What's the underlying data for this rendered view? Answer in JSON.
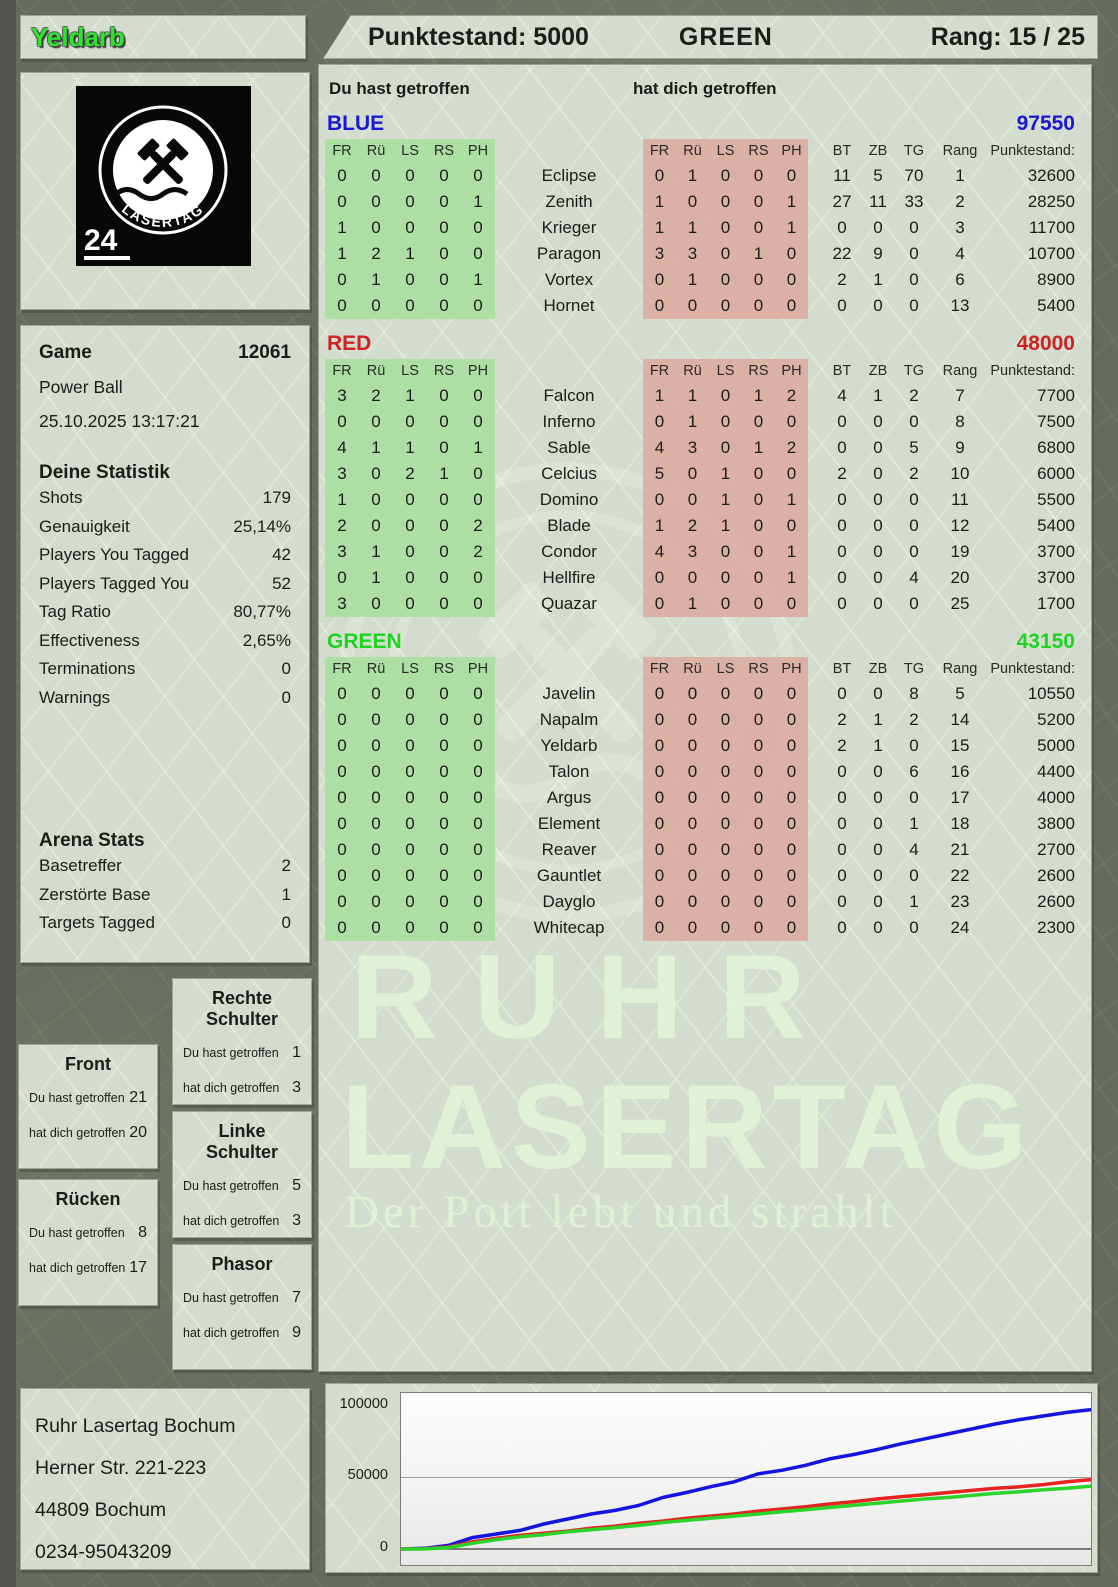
{
  "header": {
    "player": "Yeldarb",
    "player_color": "#2ce52c",
    "score_label": "Punktestand: 5000",
    "team": "GREEN",
    "rank_label": "Rang: 15 / 25"
  },
  "logo": {
    "arc_top": "RUHR",
    "arc_bottom": "LASERTAG",
    "badge": "24"
  },
  "game": {
    "label": "Game",
    "number": "12061",
    "mode": "Power Ball",
    "datetime": "25.10.2025 13:17:21"
  },
  "your_stats": {
    "title": "Deine Statistik",
    "rows": [
      [
        "Shots",
        "179"
      ],
      [
        "Genauigkeit",
        "25,14%"
      ],
      [
        "Players You Tagged",
        "42"
      ],
      [
        "Players Tagged You",
        "52"
      ],
      [
        "Tag Ratio",
        "80,77%"
      ],
      [
        "Effectiveness",
        "2,65%"
      ],
      [
        "Terminations",
        "0"
      ],
      [
        "Warnings",
        "0"
      ]
    ]
  },
  "arena_stats": {
    "title": "Arena Stats",
    "rows": [
      [
        "Basetreffer",
        "2"
      ],
      [
        "Zerstörte Base",
        "1"
      ],
      [
        "Targets Tagged",
        "0"
      ]
    ]
  },
  "scoreboard": {
    "you_hit_label": "Du hast getroffen",
    "hit_you_label": "hat dich getroffen",
    "you_band_color": "#a9dfa1",
    "them_band_color": "#dcaca1",
    "hit_cols": [
      "FR",
      "Rü",
      "LS",
      "RS",
      "PH"
    ],
    "stat_cols": [
      "BT",
      "ZB",
      "TG",
      "Rang",
      "Punktestand:"
    ],
    "teams": [
      {
        "name": "BLUE",
        "color": "#1a18d0",
        "total": "97550",
        "players": [
          {
            "name": "Eclipse",
            "you": [
              0,
              0,
              0,
              0,
              0
            ],
            "them": [
              0,
              1,
              0,
              0,
              0
            ],
            "bt": 11,
            "zb": 5,
            "tg": 70,
            "rang": 1,
            "score": "32600"
          },
          {
            "name": "Zenith",
            "you": [
              0,
              0,
              0,
              0,
              1
            ],
            "them": [
              1,
              0,
              0,
              0,
              1
            ],
            "bt": 27,
            "zb": 11,
            "tg": 33,
            "rang": 2,
            "score": "28250"
          },
          {
            "name": "Krieger",
            "you": [
              1,
              0,
              0,
              0,
              0
            ],
            "them": [
              1,
              1,
              0,
              0,
              1
            ],
            "bt": 0,
            "zb": 0,
            "tg": 0,
            "rang": 3,
            "score": "11700"
          },
          {
            "name": "Paragon",
            "you": [
              1,
              2,
              1,
              0,
              0
            ],
            "them": [
              3,
              3,
              0,
              1,
              0
            ],
            "bt": 22,
            "zb": 9,
            "tg": 0,
            "rang": 4,
            "score": "10700"
          },
          {
            "name": "Vortex",
            "you": [
              0,
              1,
              0,
              0,
              1
            ],
            "them": [
              0,
              1,
              0,
              0,
              0
            ],
            "bt": 2,
            "zb": 1,
            "tg": 0,
            "rang": 6,
            "score": "8900"
          },
          {
            "name": "Hornet",
            "you": [
              0,
              0,
              0,
              0,
              0
            ],
            "them": [
              0,
              0,
              0,
              0,
              0
            ],
            "bt": 0,
            "zb": 0,
            "tg": 0,
            "rang": 13,
            "score": "5400"
          }
        ]
      },
      {
        "name": "RED",
        "color": "#cc2424",
        "total": "48000",
        "players": [
          {
            "name": "Falcon",
            "you": [
              3,
              2,
              1,
              0,
              0
            ],
            "them": [
              1,
              1,
              0,
              1,
              2
            ],
            "bt": 4,
            "zb": 1,
            "tg": 2,
            "rang": 7,
            "score": "7700"
          },
          {
            "name": "Inferno",
            "you": [
              0,
              0,
              0,
              0,
              0
            ],
            "them": [
              0,
              1,
              0,
              0,
              0
            ],
            "bt": 0,
            "zb": 0,
            "tg": 0,
            "rang": 8,
            "score": "7500"
          },
          {
            "name": "Sable",
            "you": [
              4,
              1,
              1,
              0,
              1
            ],
            "them": [
              4,
              3,
              0,
              1,
              2
            ],
            "bt": 0,
            "zb": 0,
            "tg": 5,
            "rang": 9,
            "score": "6800"
          },
          {
            "name": "Celcius",
            "you": [
              3,
              0,
              2,
              1,
              0
            ],
            "them": [
              5,
              0,
              1,
              0,
              0
            ],
            "bt": 2,
            "zb": 0,
            "tg": 2,
            "rang": 10,
            "score": "6000"
          },
          {
            "name": "Domino",
            "you": [
              1,
              0,
              0,
              0,
              0
            ],
            "them": [
              0,
              0,
              1,
              0,
              1
            ],
            "bt": 0,
            "zb": 0,
            "tg": 0,
            "rang": 11,
            "score": "5500"
          },
          {
            "name": "Blade",
            "you": [
              2,
              0,
              0,
              0,
              2
            ],
            "them": [
              1,
              2,
              1,
              0,
              0
            ],
            "bt": 0,
            "zb": 0,
            "tg": 0,
            "rang": 12,
            "score": "5400"
          },
          {
            "name": "Condor",
            "you": [
              3,
              1,
              0,
              0,
              2
            ],
            "them": [
              4,
              3,
              0,
              0,
              1
            ],
            "bt": 0,
            "zb": 0,
            "tg": 0,
            "rang": 19,
            "score": "3700"
          },
          {
            "name": "Hellfire",
            "you": [
              0,
              1,
              0,
              0,
              0
            ],
            "them": [
              0,
              0,
              0,
              0,
              1
            ],
            "bt": 0,
            "zb": 0,
            "tg": 4,
            "rang": 20,
            "score": "3700"
          },
          {
            "name": "Quazar",
            "you": [
              3,
              0,
              0,
              0,
              0
            ],
            "them": [
              0,
              1,
              0,
              0,
              0
            ],
            "bt": 0,
            "zb": 0,
            "tg": 0,
            "rang": 25,
            "score": "1700"
          }
        ]
      },
      {
        "name": "GREEN",
        "color": "#1ed41e",
        "total": "43150",
        "players": [
          {
            "name": "Javelin",
            "you": [
              0,
              0,
              0,
              0,
              0
            ],
            "them": [
              0,
              0,
              0,
              0,
              0
            ],
            "bt": 0,
            "zb": 0,
            "tg": 8,
            "rang": 5,
            "score": "10550"
          },
          {
            "name": "Napalm",
            "you": [
              0,
              0,
              0,
              0,
              0
            ],
            "them": [
              0,
              0,
              0,
              0,
              0
            ],
            "bt": 2,
            "zb": 1,
            "tg": 2,
            "rang": 14,
            "score": "5200"
          },
          {
            "name": "Yeldarb",
            "you": [
              0,
              0,
              0,
              0,
              0
            ],
            "them": [
              0,
              0,
              0,
              0,
              0
            ],
            "bt": 2,
            "zb": 1,
            "tg": 0,
            "rang": 15,
            "score": "5000"
          },
          {
            "name": "Talon",
            "you": [
              0,
              0,
              0,
              0,
              0
            ],
            "them": [
              0,
              0,
              0,
              0,
              0
            ],
            "bt": 0,
            "zb": 0,
            "tg": 6,
            "rang": 16,
            "score": "4400"
          },
          {
            "name": "Argus",
            "you": [
              0,
              0,
              0,
              0,
              0
            ],
            "them": [
              0,
              0,
              0,
              0,
              0
            ],
            "bt": 0,
            "zb": 0,
            "tg": 0,
            "rang": 17,
            "score": "4000"
          },
          {
            "name": "Element",
            "you": [
              0,
              0,
              0,
              0,
              0
            ],
            "them": [
              0,
              0,
              0,
              0,
              0
            ],
            "bt": 0,
            "zb": 0,
            "tg": 1,
            "rang": 18,
            "score": "3800"
          },
          {
            "name": "Reaver",
            "you": [
              0,
              0,
              0,
              0,
              0
            ],
            "them": [
              0,
              0,
              0,
              0,
              0
            ],
            "bt": 0,
            "zb": 0,
            "tg": 4,
            "rang": 21,
            "score": "2700"
          },
          {
            "name": "Gauntlet",
            "you": [
              0,
              0,
              0,
              0,
              0
            ],
            "them": [
              0,
              0,
              0,
              0,
              0
            ],
            "bt": 0,
            "zb": 0,
            "tg": 0,
            "rang": 22,
            "score": "2600"
          },
          {
            "name": "Dayglo",
            "you": [
              0,
              0,
              0,
              0,
              0
            ],
            "them": [
              0,
              0,
              0,
              0,
              0
            ],
            "bt": 0,
            "zb": 0,
            "tg": 1,
            "rang": 23,
            "score": "2600"
          },
          {
            "name": "Whitecap",
            "you": [
              0,
              0,
              0,
              0,
              0
            ],
            "them": [
              0,
              0,
              0,
              0,
              0
            ],
            "bt": 0,
            "zb": 0,
            "tg": 0,
            "rang": 24,
            "score": "2300"
          }
        ]
      }
    ]
  },
  "body_labels": {
    "you": "Du hast getroffen",
    "them": "hat dich getroffen"
  },
  "body_parts": {
    "rechte_schulter": {
      "title": "Rechte Schulter",
      "you": "1",
      "them": "3"
    },
    "front": {
      "title": "Front",
      "you": "21",
      "them": "20"
    },
    "linke_schulter": {
      "title": "Linke Schulter",
      "you": "5",
      "them": "3"
    },
    "ruecken": {
      "title": "Rücken",
      "you": "8",
      "them": "17"
    },
    "phasor": {
      "title": "Phasor",
      "you": "7",
      "them": "9"
    }
  },
  "watermark": {
    "line1": "RUHR",
    "line2": "LASERTAG",
    "tagline": "Der Pott lebt und strahlt"
  },
  "address": {
    "lines": [
      "Ruhr Lasertag Bochum",
      "Herner Str. 221-223",
      "44809 Bochum",
      "0234-95043209"
    ]
  },
  "chart_data": {
    "type": "line",
    "title": "",
    "xlabel": "",
    "ylabel": "",
    "ylim": [
      0,
      100000
    ],
    "yticks": [
      "100000",
      "50000",
      "0"
    ],
    "grid": true,
    "legend": "none",
    "series": [
      {
        "name": "BLUE",
        "color": "#1414e0",
        "values": [
          0,
          500,
          2500,
          8000,
          10500,
          13000,
          17500,
          21000,
          24500,
          27000,
          30500,
          36000,
          39500,
          43500,
          47000,
          52500,
          55000,
          58500,
          63000,
          66000,
          69500,
          73500,
          77000,
          80500,
          84000,
          87500,
          90500,
          93000,
          95500,
          97500
        ]
      },
      {
        "name": "RED",
        "color": "#e62222",
        "values": [
          0,
          200,
          1500,
          5000,
          7500,
          9500,
          11000,
          12500,
          14500,
          16000,
          18000,
          19500,
          21500,
          23000,
          24500,
          26500,
          28000,
          29500,
          31500,
          33000,
          35000,
          36500,
          38000,
          39500,
          41000,
          42500,
          43500,
          45000,
          47000,
          48500
        ]
      },
      {
        "name": "GREEN",
        "color": "#2ad42a",
        "values": [
          0,
          100,
          1000,
          4000,
          6500,
          8500,
          10000,
          12000,
          13500,
          15000,
          16500,
          18500,
          20000,
          21500,
          23000,
          24500,
          26000,
          27500,
          29000,
          30500,
          32000,
          33500,
          35000,
          36000,
          37500,
          39000,
          40000,
          41500,
          42500,
          44000
        ]
      }
    ]
  }
}
